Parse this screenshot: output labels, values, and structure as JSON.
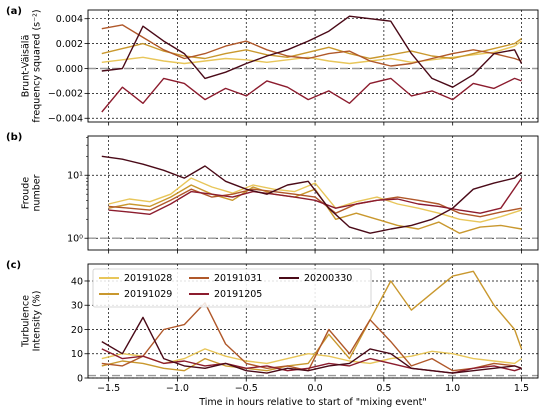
{
  "chart_data": [
    {
      "type": "line",
      "panel_label": "(a)",
      "ylabel_lines": [
        "Brunt-Väisälä",
        "frequency squared (s⁻²)"
      ],
      "xlim": [
        -1.65,
        1.62
      ],
      "ylim": [
        -0.0043,
        0.0047
      ],
      "yscale": "linear",
      "yticks": [
        -0.004,
        -0.002,
        0.0,
        0.002,
        0.004
      ],
      "ytick_labels": [
        "−0.004",
        "−0.002",
        "0.000",
        "0.002",
        "0.004"
      ],
      "grid": true,
      "reference_line": 0.0,
      "series": [
        {
          "id": "20191028",
          "color": "#E8C65A",
          "x": [
            -1.55,
            -1.4,
            -1.25,
            -1.1,
            -0.95,
            -0.8,
            -0.65,
            -0.5,
            -0.35,
            -0.2,
            -0.05,
            0.1,
            0.25,
            0.4,
            0.55,
            0.7,
            0.85,
            1.0,
            1.15,
            1.3,
            1.45,
            1.5
          ],
          "y": [
            0.0005,
            0.0007,
            0.0009,
            0.0006,
            0.0004,
            0.0006,
            0.0008,
            0.0007,
            0.0005,
            0.0007,
            0.0009,
            0.0006,
            0.0004,
            0.0006,
            0.0008,
            0.0005,
            0.0007,
            0.0009,
            0.0011,
            0.0013,
            0.0018,
            0.0022
          ]
        },
        {
          "id": "20191029",
          "color": "#C9982E",
          "x": [
            -1.55,
            -1.4,
            -1.25,
            -1.1,
            -0.95,
            -0.8,
            -0.65,
            -0.5,
            -0.35,
            -0.2,
            -0.05,
            0.1,
            0.25,
            0.4,
            0.55,
            0.7,
            0.85,
            1.0,
            1.15,
            1.3,
            1.45,
            1.5
          ],
          "y": [
            0.0012,
            0.0016,
            0.002,
            0.0014,
            0.001,
            0.0008,
            0.0012,
            0.0015,
            0.0011,
            0.0009,
            0.0013,
            0.0017,
            0.0012,
            0.0008,
            0.0011,
            0.0014,
            0.001,
            0.0008,
            0.0012,
            0.0016,
            0.002,
            0.0024
          ]
        },
        {
          "id": "20191031",
          "color": "#B0582A",
          "x": [
            -1.55,
            -1.4,
            -1.25,
            -1.1,
            -0.95,
            -0.8,
            -0.65,
            -0.5,
            -0.35,
            -0.2,
            -0.05,
            0.1,
            0.25,
            0.4,
            0.55,
            0.7,
            0.85,
            1.0,
            1.15,
            1.3,
            1.45,
            1.5
          ],
          "y": [
            0.0032,
            0.0035,
            0.0025,
            0.0015,
            0.0008,
            0.0012,
            0.0018,
            0.0022,
            0.0015,
            0.001,
            0.0008,
            0.0012,
            0.0014,
            0.0006,
            0.0002,
            0.0004,
            0.0008,
            0.0012,
            0.0015,
            0.0012,
            0.0008,
            0.0006
          ]
        },
        {
          "id": "20191205",
          "color": "#8C1C2E",
          "x": [
            -1.55,
            -1.4,
            -1.25,
            -1.1,
            -0.95,
            -0.8,
            -0.65,
            -0.5,
            -0.35,
            -0.2,
            -0.05,
            0.1,
            0.25,
            0.4,
            0.55,
            0.7,
            0.85,
            1.0,
            1.15,
            1.3,
            1.45,
            1.5
          ],
          "y": [
            -0.0035,
            -0.0015,
            -0.0028,
            -0.0008,
            -0.0012,
            -0.0025,
            -0.0016,
            -0.0022,
            -0.001,
            -0.0015,
            -0.0025,
            -0.0018,
            -0.0028,
            -0.0012,
            -0.0008,
            -0.0022,
            -0.0018,
            -0.0025,
            -0.0012,
            -0.0016,
            -0.0008,
            -0.001
          ]
        },
        {
          "id": "20200330",
          "color": "#4A0A18",
          "x": [
            -1.55,
            -1.4,
            -1.25,
            -1.1,
            -0.95,
            -0.8,
            -0.65,
            -0.5,
            -0.35,
            -0.2,
            -0.05,
            0.1,
            0.25,
            0.4,
            0.55,
            0.7,
            0.85,
            1.0,
            1.15,
            1.3,
            1.45,
            1.5
          ],
          "y": [
            -0.0002,
            0.0,
            0.0034,
            0.0022,
            0.0012,
            -0.0008,
            -0.0003,
            0.0004,
            0.001,
            0.0015,
            0.0022,
            0.003,
            0.0042,
            0.004,
            0.0038,
            0.0012,
            -0.0008,
            -0.0015,
            -0.0005,
            0.0012,
            0.0015,
            0.0004
          ]
        }
      ]
    },
    {
      "type": "line",
      "panel_label": "(b)",
      "ylabel_lines": [
        "Froude",
        "number"
      ],
      "xlim": [
        -1.65,
        1.62
      ],
      "ylim": [
        0.65,
        42
      ],
      "yscale": "log",
      "yticks": [
        1,
        10
      ],
      "ytick_labels": [
        "10⁰",
        "10¹"
      ],
      "grid": true,
      "reference_line": 1.0,
      "series": [
        {
          "id": "20191028",
          "color": "#E8C65A",
          "x": [
            -1.5,
            -1.35,
            -1.2,
            -1.05,
            -0.9,
            -0.75,
            -0.6,
            -0.45,
            -0.3,
            -0.15,
            0.0,
            0.15,
            0.3,
            0.45,
            0.6,
            0.75,
            0.9,
            1.05,
            1.2,
            1.35,
            1.5
          ],
          "y": [
            3.5,
            4.2,
            3.8,
            5.0,
            9.0,
            6.5,
            5.2,
            7.0,
            6.0,
            5.5,
            7.5,
            3.0,
            3.8,
            4.5,
            3.5,
            3.0,
            2.5,
            2.0,
            1.8,
            2.2,
            2.8
          ]
        },
        {
          "id": "20191029",
          "color": "#C9982E",
          "x": [
            -1.5,
            -1.35,
            -1.2,
            -1.05,
            -0.9,
            -0.75,
            -0.6,
            -0.45,
            -0.3,
            -0.15,
            0.0,
            0.15,
            0.3,
            0.45,
            0.6,
            0.75,
            0.9,
            1.05,
            1.2,
            1.35,
            1.5
          ],
          "y": [
            3.0,
            3.5,
            3.2,
            4.5,
            7.0,
            5.0,
            4.0,
            6.5,
            5.0,
            4.5,
            6.0,
            2.0,
            2.5,
            2.0,
            1.6,
            1.4,
            1.8,
            1.2,
            1.5,
            1.6,
            1.4
          ]
        },
        {
          "id": "20191031",
          "color": "#B0582A",
          "x": [
            -1.5,
            -1.35,
            -1.2,
            -1.05,
            -0.9,
            -0.75,
            -0.6,
            -0.45,
            -0.3,
            -0.15,
            0.0,
            0.15,
            0.3,
            0.45,
            0.6,
            0.75,
            0.9,
            1.05,
            1.2,
            1.35,
            1.5
          ],
          "y": [
            3.2,
            3.0,
            2.8,
            4.0,
            6.0,
            4.5,
            5.0,
            6.0,
            5.5,
            5.0,
            4.5,
            2.5,
            3.5,
            4.0,
            4.5,
            4.0,
            3.5,
            2.5,
            2.2,
            2.6,
            3.0
          ]
        },
        {
          "id": "20191205",
          "color": "#8C1C2E",
          "x": [
            -1.5,
            -1.35,
            -1.2,
            -1.05,
            -0.9,
            -0.75,
            -0.6,
            -0.45,
            -0.3,
            -0.15,
            0.0,
            0.15,
            0.3,
            0.45,
            0.6,
            0.75,
            0.9,
            1.05,
            1.2,
            1.35,
            1.5
          ],
          "y": [
            2.8,
            2.6,
            2.4,
            3.5,
            5.5,
            5.0,
            4.5,
            5.5,
            5.0,
            4.5,
            4.0,
            3.0,
            3.5,
            4.0,
            4.2,
            3.5,
            3.2,
            2.8,
            2.5,
            3.0,
            9.0
          ]
        },
        {
          "id": "20200330",
          "color": "#4A0A18",
          "x": [
            -1.55,
            -1.4,
            -1.25,
            -1.1,
            -0.95,
            -0.8,
            -0.65,
            -0.5,
            -0.35,
            -0.2,
            -0.05,
            0.1,
            0.25,
            0.4,
            0.55,
            0.7,
            0.85,
            1.0,
            1.15,
            1.3,
            1.45,
            1.5
          ],
          "y": [
            20,
            18,
            15,
            12,
            9,
            14,
            8,
            6,
            5,
            7,
            8,
            3,
            1.5,
            1.2,
            1.4,
            1.6,
            2.0,
            3.0,
            6.0,
            7.5,
            9.0,
            11.0
          ]
        }
      ]
    },
    {
      "type": "line",
      "panel_label": "(c)",
      "ylabel_lines": [
        "Turbulence",
        "Intensity (%)"
      ],
      "xlim": [
        -1.65,
        1.62
      ],
      "ylim": [
        0,
        47
      ],
      "yscale": "linear",
      "yticks": [
        0,
        10,
        20,
        30,
        40
      ],
      "ytick_labels": [
        "0",
        "10",
        "20",
        "30",
        "40"
      ],
      "grid": true,
      "reference_line": 1.0,
      "legend": {
        "position": "top-left",
        "columns": 3,
        "entries": [
          "20191028",
          "20191029",
          "20191031",
          "20191205",
          "20200330"
        ]
      },
      "series": [
        {
          "id": "20191028",
          "color": "#E8C65A",
          "x": [
            -1.55,
            -1.4,
            -1.25,
            -1.1,
            -0.95,
            -0.8,
            -0.65,
            -0.5,
            -0.35,
            -0.2,
            -0.05,
            0.1,
            0.25,
            0.4,
            0.55,
            0.7,
            0.85,
            1.0,
            1.15,
            1.3,
            1.45,
            1.5
          ],
          "y": [
            8,
            10,
            9,
            6,
            8,
            12,
            9,
            7,
            6,
            8,
            10,
            9,
            7,
            6,
            8,
            9,
            11,
            10,
            8,
            7,
            6,
            8
          ]
        },
        {
          "id": "20191029",
          "color": "#C9982E",
          "x": [
            -1.55,
            -1.4,
            -1.25,
            -1.1,
            -0.95,
            -0.8,
            -0.65,
            -0.5,
            -0.35,
            -0.2,
            -0.05,
            0.1,
            0.25,
            0.4,
            0.55,
            0.7,
            0.85,
            1.0,
            1.15,
            1.3,
            1.45,
            1.5
          ],
          "y": [
            5,
            7,
            6,
            4,
            3,
            8,
            5,
            4,
            3,
            5,
            6,
            18,
            8,
            24,
            40,
            28,
            35,
            42,
            44,
            30,
            20,
            12
          ]
        },
        {
          "id": "20191031",
          "color": "#B0582A",
          "x": [
            -1.55,
            -1.4,
            -1.25,
            -1.1,
            -0.95,
            -0.8,
            -0.65,
            -0.5,
            -0.35,
            -0.2,
            -0.05,
            0.1,
            0.25,
            0.4,
            0.55,
            0.7,
            0.85,
            1.0,
            1.15,
            1.3,
            1.45,
            1.5
          ],
          "y": [
            6,
            5,
            9,
            20,
            22,
            31,
            14,
            6,
            4,
            5,
            3,
            20,
            10,
            24,
            15,
            5,
            8,
            3,
            4,
            6,
            5,
            4
          ]
        },
        {
          "id": "20191205",
          "color": "#8C1C2E",
          "x": [
            -1.55,
            -1.4,
            -1.25,
            -1.1,
            -0.95,
            -0.8,
            -0.65,
            -0.5,
            -0.35,
            -0.2,
            -0.05,
            0.1,
            0.25,
            0.4,
            0.55,
            0.7,
            0.85,
            1.0,
            1.15,
            1.3,
            1.45,
            1.5
          ],
          "y": [
            12,
            8,
            9,
            6,
            7,
            5,
            6,
            4,
            5,
            3,
            4,
            6,
            5,
            8,
            6,
            4,
            3,
            2,
            4,
            5,
            3,
            4
          ]
        },
        {
          "id": "20200330",
          "color": "#4A0A18",
          "x": [
            -1.55,
            -1.4,
            -1.25,
            -1.1,
            -0.95,
            -0.8,
            -0.65,
            -0.5,
            -0.35,
            -0.2,
            -0.05,
            0.1,
            0.25,
            0.4,
            0.55,
            0.7,
            0.85,
            1.0,
            1.15,
            1.3,
            1.45,
            1.5
          ],
          "y": [
            15,
            10,
            25,
            8,
            5,
            4,
            6,
            3,
            2,
            4,
            3,
            5,
            6,
            12,
            10,
            4,
            3,
            2,
            3,
            4,
            5,
            4
          ]
        }
      ]
    }
  ],
  "xaxis": {
    "xlabel": "Time in hours relative to start of \"mixing event\"",
    "xticks": [
      -1.5,
      -1.0,
      -0.5,
      0.0,
      0.5,
      1.0,
      1.5
    ],
    "xtick_labels": [
      "−1.5",
      "−1.0",
      "−0.5",
      "0.0",
      "0.5",
      "1.0",
      "1.5"
    ]
  }
}
